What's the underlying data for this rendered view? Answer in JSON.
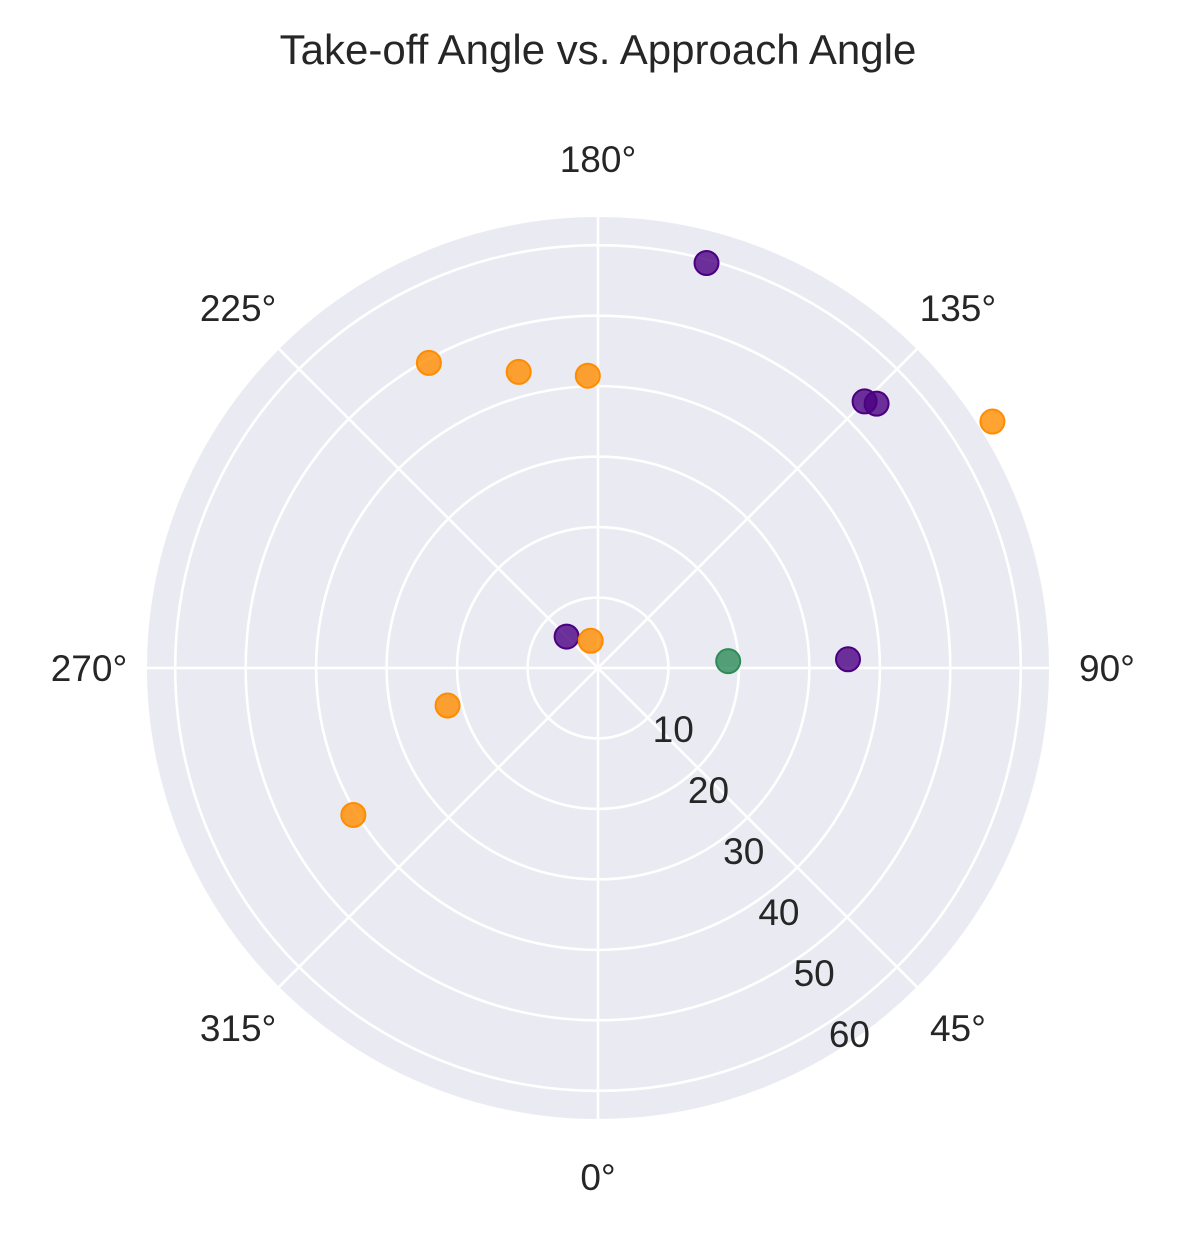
{
  "chart_data": {
    "type": "scatter",
    "projection": "polar",
    "title": "Take-off Angle vs. Approach Angle",
    "theta_zero_location": "bottom",
    "theta_direction": "counterclockwise",
    "theta_tick_labels": [
      "0°",
      "45°",
      "90°",
      "135°",
      "180°",
      "225°",
      "270°",
      "315°"
    ],
    "theta_ticks_deg": [
      0,
      45,
      90,
      135,
      180,
      225,
      270,
      315
    ],
    "r_ticks": [
      10,
      20,
      30,
      40,
      50,
      60
    ],
    "r_tick_labels": [
      "10",
      "20",
      "30",
      "40",
      "50",
      "60"
    ],
    "rlim": [
      0,
      64
    ],
    "r_label_angle_deg": 30,
    "grid": true,
    "background_color": "#EAEAF2",
    "grid_color": "#FFFFFF",
    "points": [
      {
        "theta": 165,
        "r": 59.5,
        "color": "#4B0082"
      },
      {
        "theta": 135,
        "r": 53.5,
        "color": "#4B0082"
      },
      {
        "theta": 133.5,
        "r": 54.5,
        "color": "#4B0082"
      },
      {
        "theta": 92,
        "r": 35.5,
        "color": "#4B0082"
      },
      {
        "theta": 225,
        "r": 6.3,
        "color": "#4B0082"
      },
      {
        "theta": 93,
        "r": 18.5,
        "color": "#2E8B57"
      },
      {
        "theta": 122,
        "r": 66,
        "color": "#FF8C00"
      },
      {
        "theta": 182,
        "r": 41.5,
        "color": "#FF8C00"
      },
      {
        "theta": 195,
        "r": 43.5,
        "color": "#FF8C00"
      },
      {
        "theta": 209,
        "r": 49.5,
        "color": "#FF8C00"
      },
      {
        "theta": 195,
        "r": 4.0,
        "color": "#FF8C00"
      },
      {
        "theta": 284,
        "r": 22.0,
        "color": "#FF8C00"
      },
      {
        "theta": 301,
        "r": 40.5,
        "color": "#FF8C00"
      }
    ],
    "point_alpha": 0.8
  }
}
